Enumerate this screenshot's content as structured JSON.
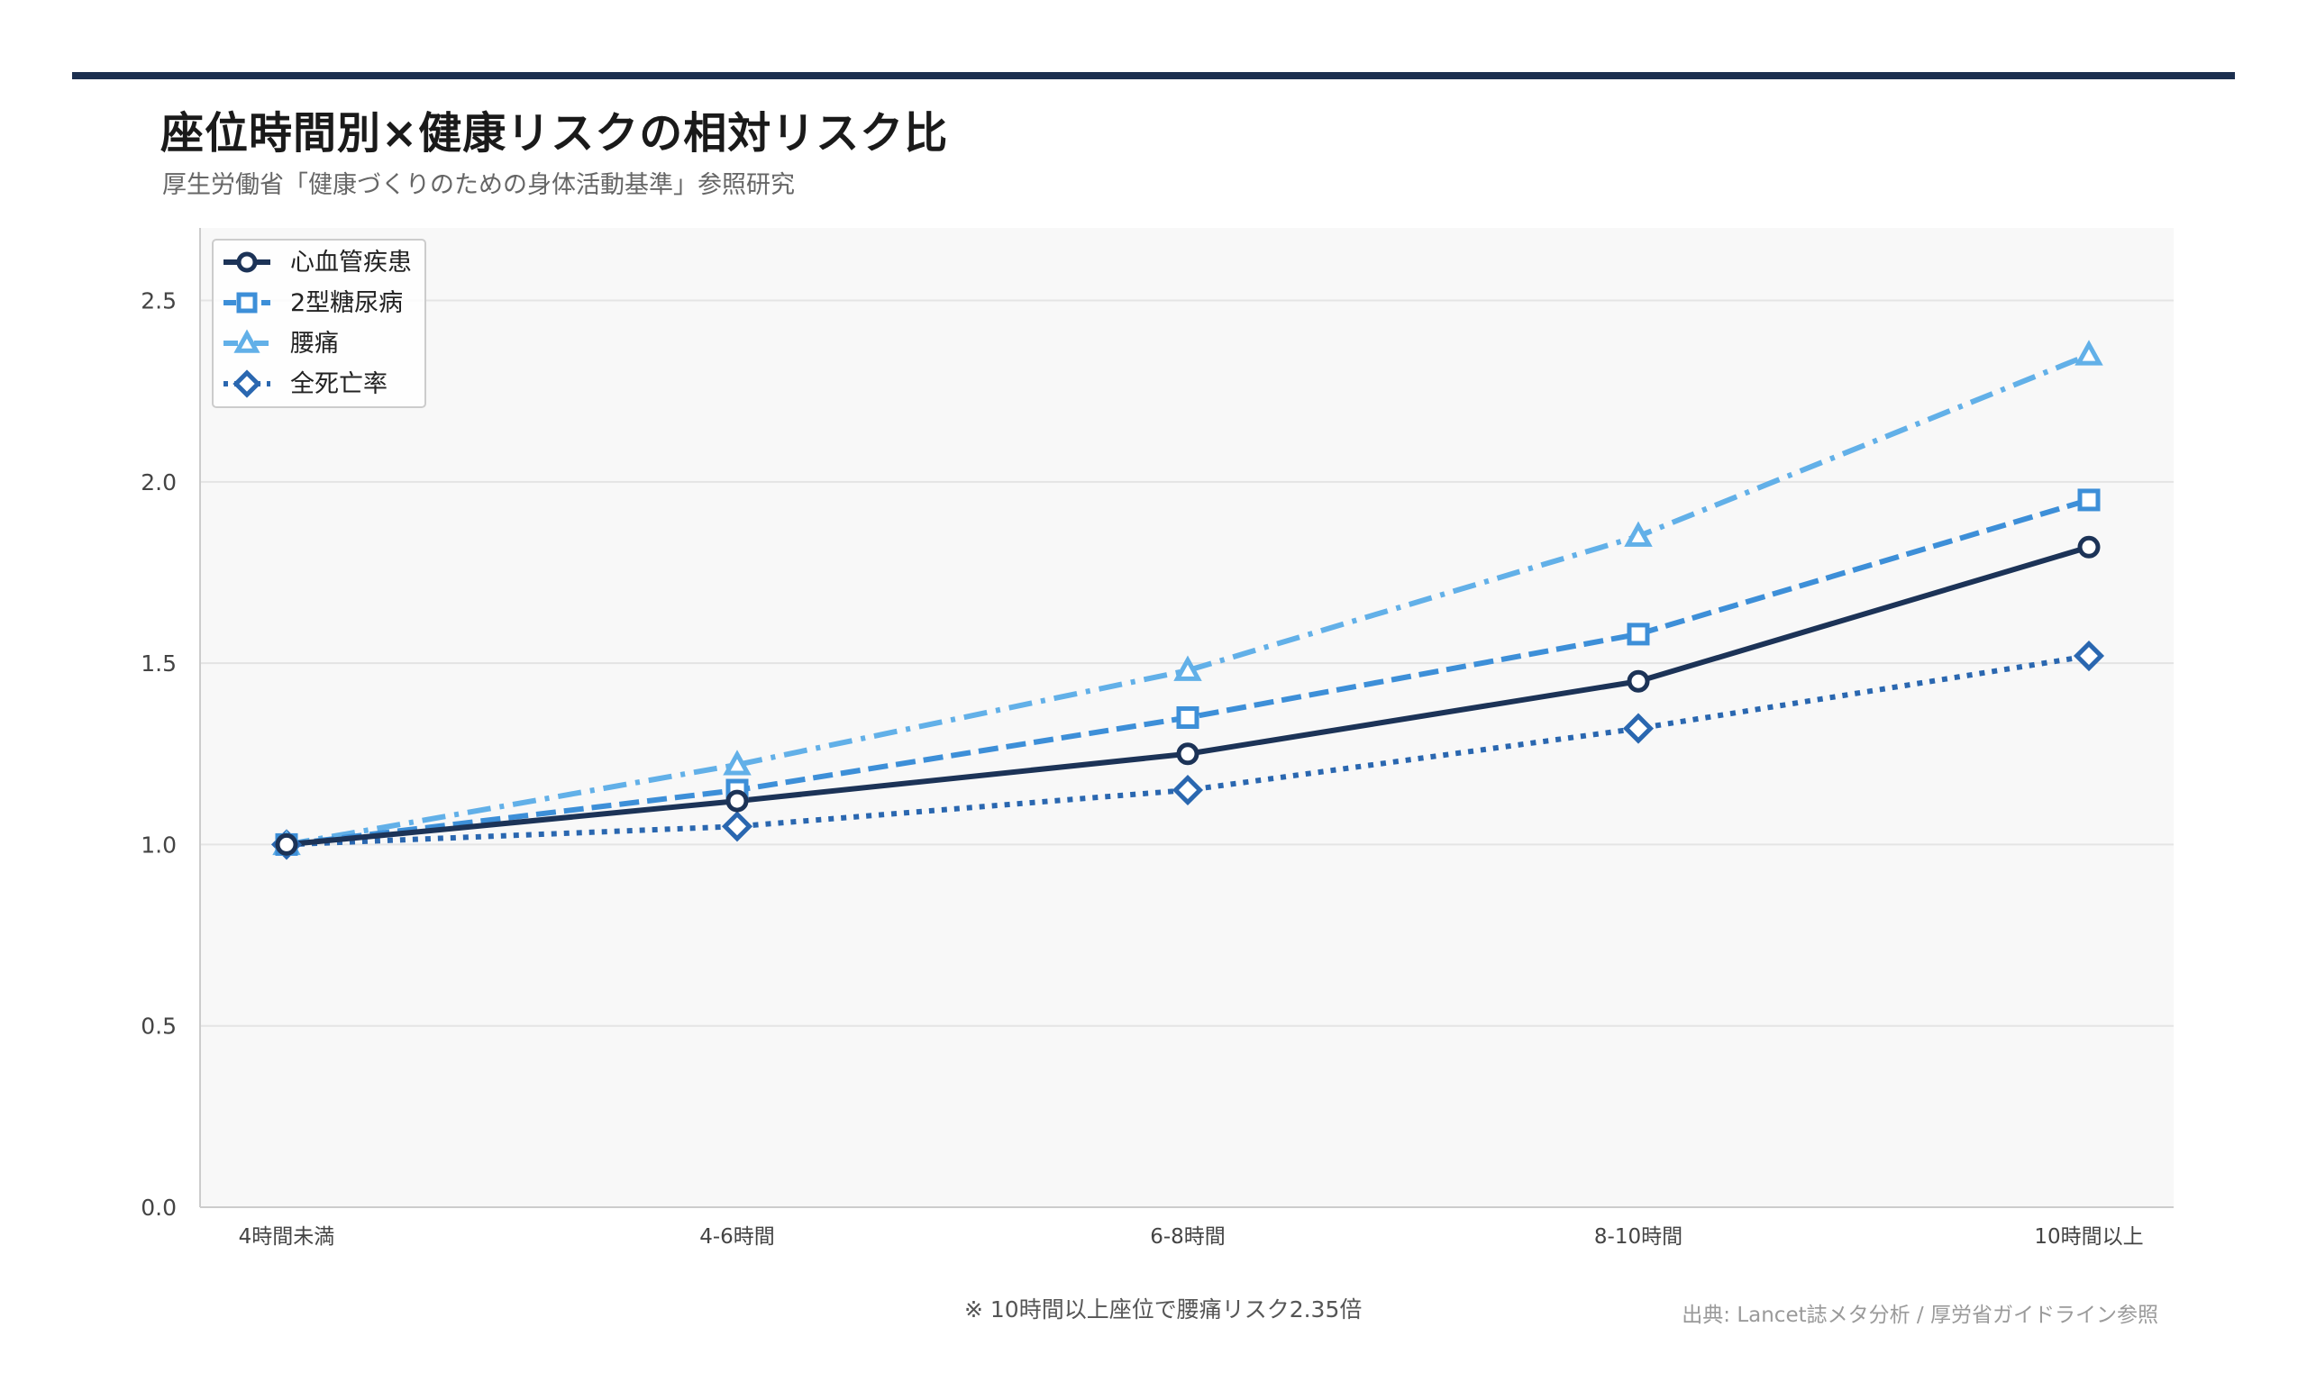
{
  "header": {
    "title": "座位時間別×健康リスクの相対リスク比",
    "subtitle": "厚生労働省「健康づくりのための身体活動基準」参照研究"
  },
  "footer": {
    "note": "※ 10時間以上座位で腰痛リスク2.35倍",
    "source": "出典: Lancet誌メタ分析 / 厚労省ガイドライン参照"
  },
  "colors": {
    "rule": "#1c2f4f",
    "plot_bg": "#f8f8f8",
    "grid": "#e4e4e4"
  },
  "chart_data": {
    "type": "line",
    "categories": [
      "4時間未満",
      "4-6時間",
      "6-8時間",
      "8-10時間",
      "10時間以上"
    ],
    "ylim": [
      0,
      2.7
    ],
    "yticks": [
      0.0,
      0.5,
      1.0,
      1.5,
      2.0,
      2.5
    ],
    "grid": true,
    "legend_position": "top-left",
    "series": [
      {
        "name": "心血管疾患",
        "values": [
          1.0,
          1.12,
          1.25,
          1.45,
          1.82
        ],
        "color": "#1c3357",
        "marker": "circle",
        "line_style": "solid"
      },
      {
        "name": "2型糖尿病",
        "values": [
          1.0,
          1.15,
          1.35,
          1.58,
          1.95
        ],
        "color": "#3d8fd8",
        "marker": "square",
        "line_style": "dashed"
      },
      {
        "name": "腰痛",
        "values": [
          1.0,
          1.22,
          1.48,
          1.85,
          2.35
        ],
        "color": "#62b0e8",
        "marker": "triangle",
        "line_style": "dashdot"
      },
      {
        "name": "全死亡率",
        "values": [
          1.0,
          1.05,
          1.15,
          1.32,
          1.52
        ],
        "color": "#2a67b0",
        "marker": "diamond",
        "line_style": "dotted"
      }
    ]
  }
}
